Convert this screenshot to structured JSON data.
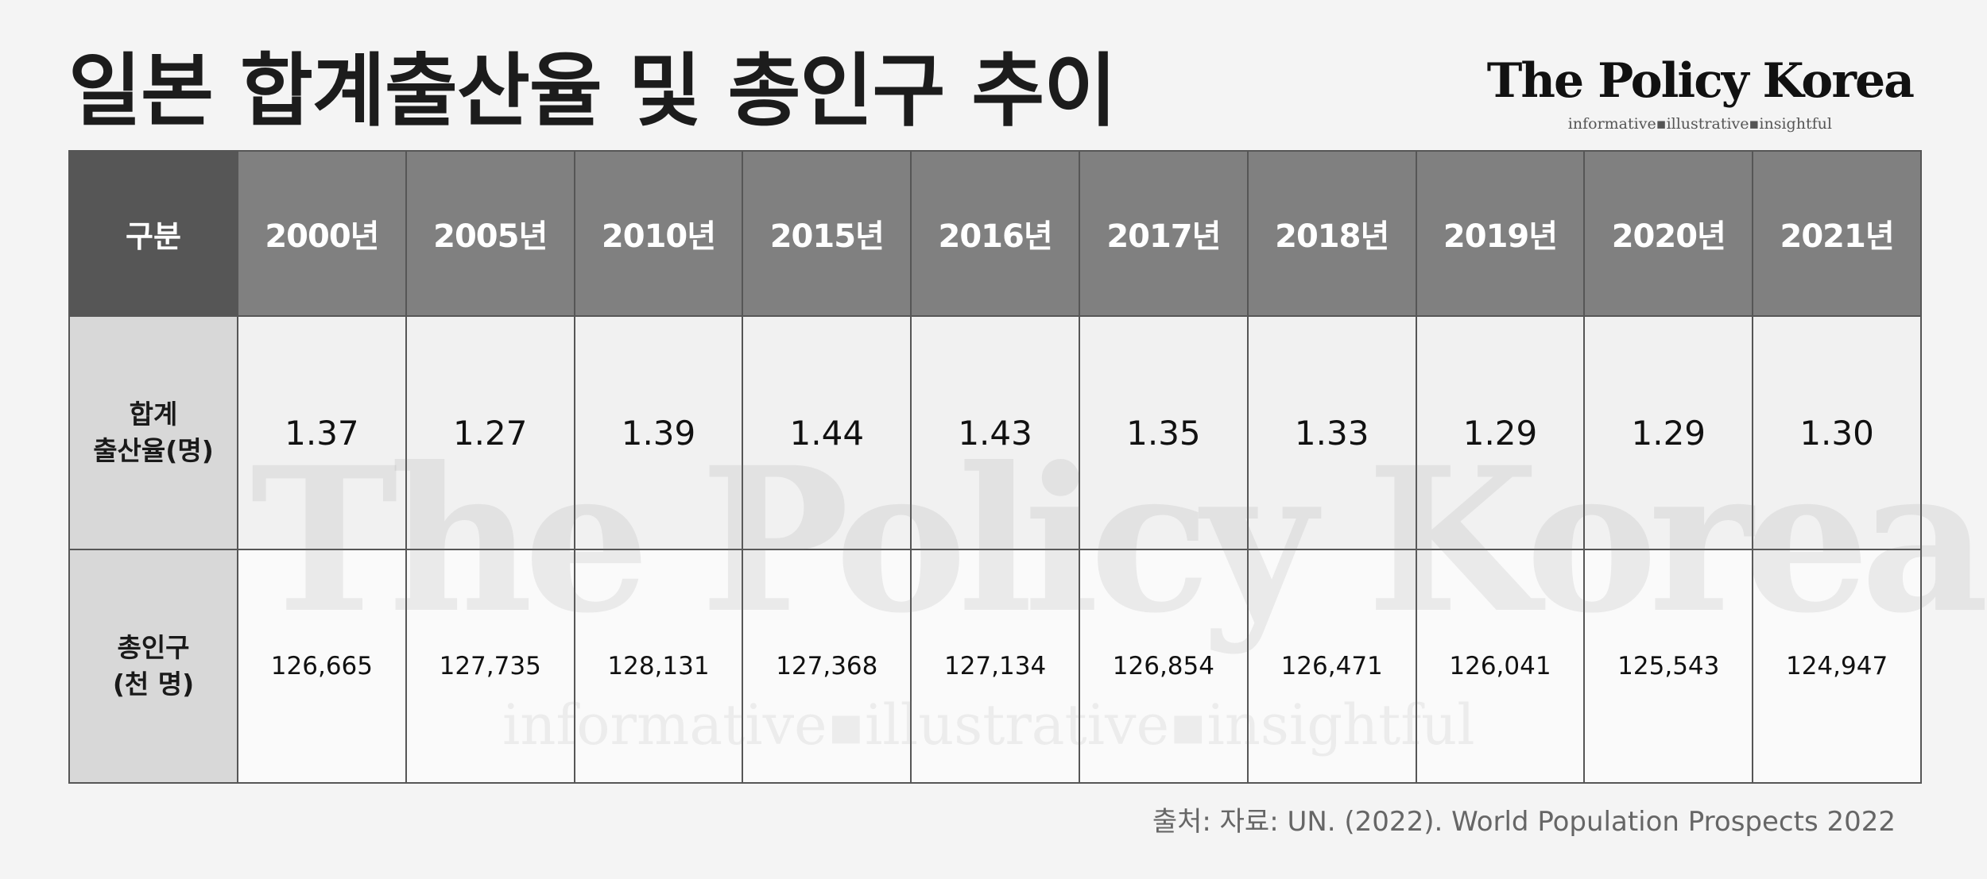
{
  "title": "일본 합계출산율 및 총인구 추이",
  "brand": {
    "name": "The Policy Korea",
    "tagline": "informative▪illustrative▪insightful"
  },
  "table": {
    "corner": "구분",
    "years": [
      "2000년",
      "2005년",
      "2010년",
      "2015년",
      "2016년",
      "2017년",
      "2018년",
      "2019년",
      "2020년",
      "2021년"
    ],
    "rows": [
      {
        "label_line1": "합계",
        "label_line2": "출산율(명)",
        "values": [
          "1.37",
          "1.27",
          "1.39",
          "1.44",
          "1.43",
          "1.35",
          "1.33",
          "1.29",
          "1.29",
          "1.30"
        ]
      },
      {
        "label_line1": "총인구",
        "label_line2": "(천 명)",
        "values": [
          "126,665",
          "127,735",
          "128,131",
          "127,368",
          "127,134",
          "126,854",
          "126,471",
          "126,041",
          "125,543",
          "124,947"
        ]
      }
    ]
  },
  "source": "출처: 자료: UN. (2022). World Population Prospects 2022"
}
